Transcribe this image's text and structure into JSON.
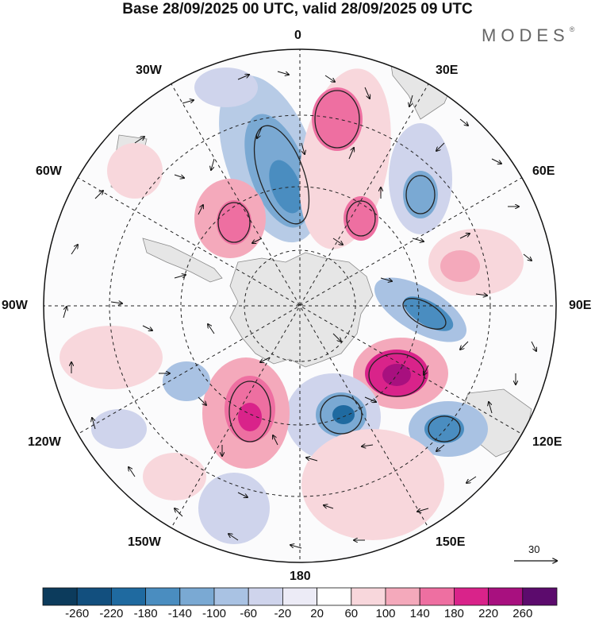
{
  "title": "Base 28/09/2025 00 UTC, valid 28/09/2025 09 UTC",
  "brand": "MODES",
  "brand_mark": "®",
  "longitude_labels": {
    "top": "0",
    "bottom": "180",
    "left": "90W",
    "right": "90E",
    "upper_left": "30W",
    "upper_right": "30E",
    "mid_left_upper": "60W",
    "mid_right_upper": "60E",
    "mid_left_lower": "120W",
    "mid_right_lower": "120E",
    "lower_left": "150W",
    "lower_right": "150E"
  },
  "reference_vector": "30",
  "colorbar": {
    "ticks": [
      "-260",
      "-220",
      "-180",
      "-140",
      "-100",
      "-60",
      "-20",
      "20",
      "60",
      "100",
      "140",
      "180",
      "220",
      "260"
    ],
    "colors": [
      "#0c3b5c",
      "#124f7e",
      "#1f6aa0",
      "#4a8dc0",
      "#7aa9d3",
      "#a9c2e3",
      "#cfd4ec",
      "#ecebf6",
      "#ffffff",
      "#f8d7dc",
      "#f4a9bb",
      "#ee6fa1",
      "#d9238a",
      "#a8107f",
      "#5c0b6d"
    ]
  }
}
